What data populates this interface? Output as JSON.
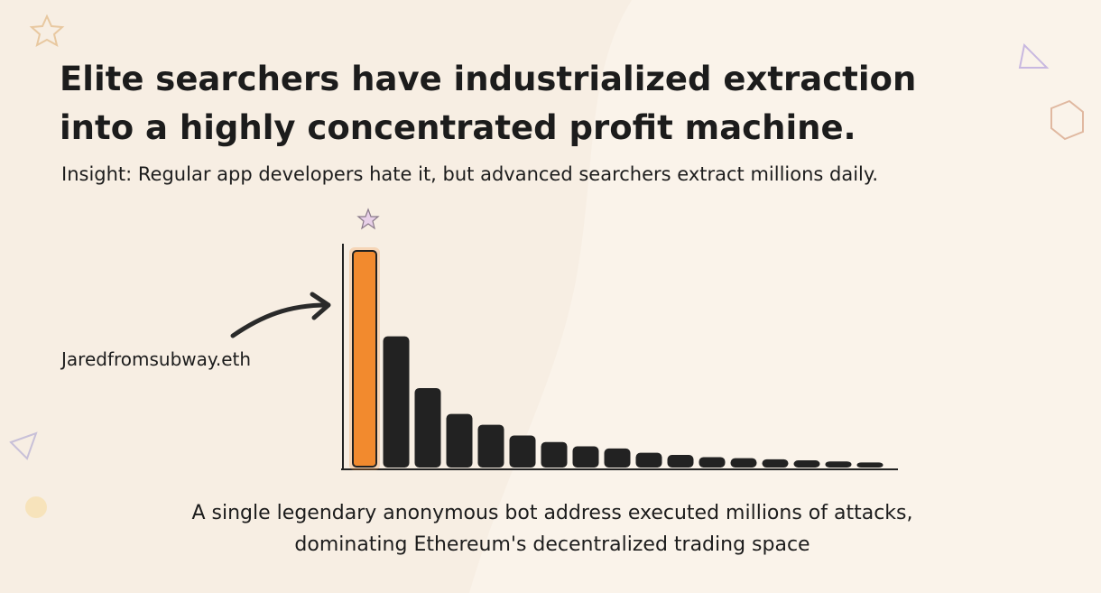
{
  "chart_data": {
    "type": "bar",
    "title": [
      "Elite searchers have industrialized extraction",
      "into a highly concentrated profit machine."
    ],
    "subtitle": "Insight: Regular app developers hate it, but advanced searchers extract millions daily.",
    "caption": [
      "A single legendary anonymous bot address executed millions of attacks,",
      "dominating Ethereum's decentralized trading space"
    ],
    "categories": [
      "Jaredfromsubway.eth",
      null,
      null,
      null,
      null,
      null,
      null,
      null,
      null,
      null,
      null,
      null,
      null,
      null,
      null,
      null,
      null
    ],
    "values": [
      100,
      60,
      36,
      24,
      19,
      14,
      11,
      9,
      8,
      6,
      5,
      4,
      3.5,
      3,
      2.5,
      2,
      1.5
    ],
    "colors": [
      "#f28a2e",
      "#222222",
      "#222222",
      "#222222",
      "#222222",
      "#222222",
      "#222222",
      "#222222",
      "#222222",
      "#222222",
      "#222222",
      "#222222",
      "#222222",
      "#222222",
      "#222222",
      "#222222",
      "#222222"
    ],
    "ylim": [
      0,
      100
    ]
  }
}
